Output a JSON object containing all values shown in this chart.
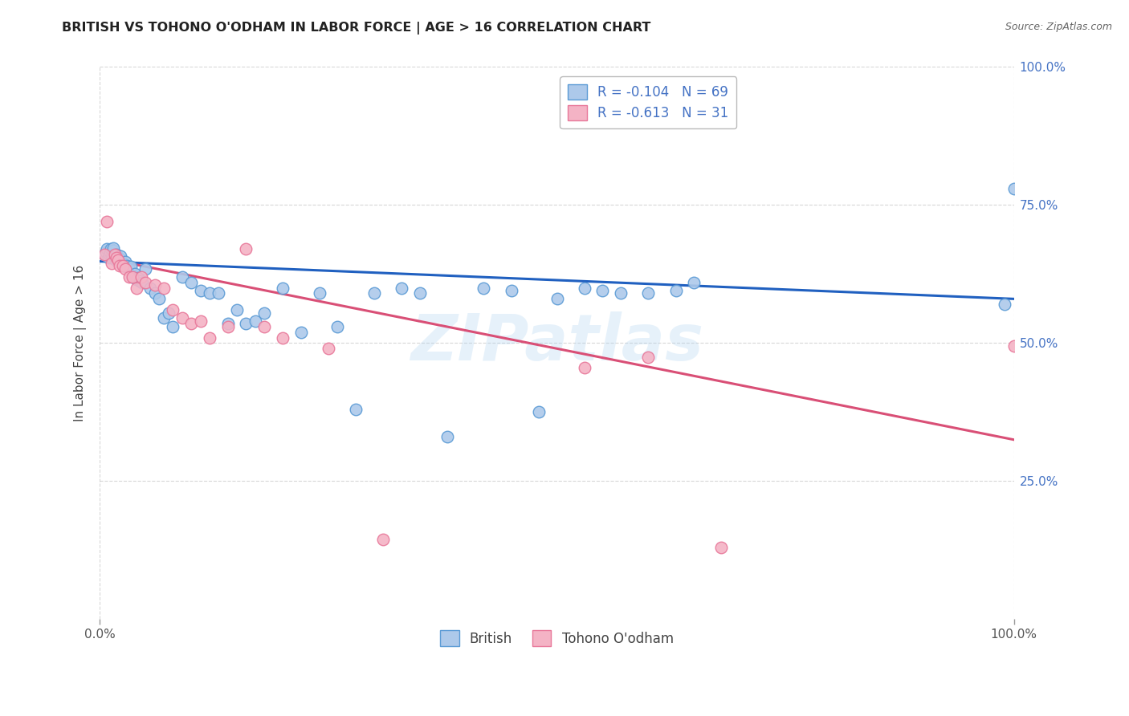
{
  "title": "BRITISH VS TOHONO O'ODHAM IN LABOR FORCE | AGE > 16 CORRELATION CHART",
  "source": "Source: ZipAtlas.com",
  "ylabel": "In Labor Force | Age > 16",
  "xlim": [
    0.0,
    1.0
  ],
  "ylim": [
    0.0,
    1.0
  ],
  "xtick_labels": [
    "0.0%",
    "100.0%"
  ],
  "ytick_labels": [
    "25.0%",
    "50.0%",
    "75.0%",
    "100.0%"
  ],
  "ytick_positions": [
    0.25,
    0.5,
    0.75,
    1.0
  ],
  "watermark": "ZIPatlas",
  "british_color": "#adc9ea",
  "british_edge_color": "#5b9bd5",
  "tohono_color": "#f4b3c5",
  "tohono_edge_color": "#e8789a",
  "line_british_color": "#2060c0",
  "line_tohono_color": "#d94f76",
  "legend_R_british": "R = -0.104",
  "legend_N_british": "N = 69",
  "legend_R_tohono": "R = -0.613",
  "legend_N_tohono": "N = 31",
  "british_x": [
    0.005,
    0.007,
    0.008,
    0.009,
    0.01,
    0.011,
    0.012,
    0.013,
    0.014,
    0.015,
    0.015,
    0.016,
    0.017,
    0.018,
    0.019,
    0.02,
    0.021,
    0.022,
    0.023,
    0.025,
    0.026,
    0.028,
    0.03,
    0.032,
    0.034,
    0.036,
    0.038,
    0.04,
    0.042,
    0.044,
    0.046,
    0.05,
    0.055,
    0.06,
    0.065,
    0.07,
    0.075,
    0.08,
    0.09,
    0.1,
    0.11,
    0.12,
    0.13,
    0.14,
    0.15,
    0.16,
    0.17,
    0.18,
    0.2,
    0.22,
    0.24,
    0.26,
    0.28,
    0.3,
    0.33,
    0.35,
    0.38,
    0.42,
    0.45,
    0.48,
    0.5,
    0.53,
    0.55,
    0.57,
    0.6,
    0.63,
    0.65,
    0.99,
    1.0
  ],
  "british_y": [
    0.66,
    0.665,
    0.67,
    0.655,
    0.66,
    0.665,
    0.67,
    0.655,
    0.66,
    0.668,
    0.672,
    0.658,
    0.65,
    0.66,
    0.655,
    0.65,
    0.648,
    0.653,
    0.658,
    0.645,
    0.64,
    0.648,
    0.64,
    0.635,
    0.638,
    0.62,
    0.625,
    0.615,
    0.618,
    0.612,
    0.61,
    0.635,
    0.6,
    0.59,
    0.58,
    0.545,
    0.555,
    0.53,
    0.62,
    0.61,
    0.595,
    0.59,
    0.59,
    0.535,
    0.56,
    0.535,
    0.54,
    0.555,
    0.6,
    0.52,
    0.59,
    0.53,
    0.38,
    0.59,
    0.6,
    0.59,
    0.33,
    0.6,
    0.595,
    0.375,
    0.58,
    0.6,
    0.595,
    0.59,
    0.59,
    0.595,
    0.61,
    0.57,
    0.78
  ],
  "tohono_x": [
    0.005,
    0.008,
    0.013,
    0.016,
    0.018,
    0.02,
    0.022,
    0.025,
    0.028,
    0.032,
    0.036,
    0.04,
    0.045,
    0.05,
    0.06,
    0.07,
    0.08,
    0.09,
    0.1,
    0.11,
    0.12,
    0.14,
    0.16,
    0.18,
    0.2,
    0.25,
    0.31,
    0.53,
    0.6,
    0.68,
    1.0
  ],
  "tohono_y": [
    0.66,
    0.72,
    0.645,
    0.66,
    0.655,
    0.65,
    0.64,
    0.64,
    0.635,
    0.62,
    0.62,
    0.6,
    0.62,
    0.61,
    0.605,
    0.6,
    0.56,
    0.545,
    0.535,
    0.54,
    0.51,
    0.53,
    0.67,
    0.53,
    0.51,
    0.49,
    0.145,
    0.455,
    0.475,
    0.13,
    0.495
  ],
  "british_line_x": [
    0.0,
    1.0
  ],
  "british_line_y": [
    0.648,
    0.58
  ],
  "tohono_line_x": [
    0.0,
    1.0
  ],
  "tohono_line_y": [
    0.655,
    0.325
  ],
  "background_color": "#ffffff",
  "grid_color": "#cccccc",
  "label_color_right": "#4472c4",
  "label_color_left": "#555555"
}
